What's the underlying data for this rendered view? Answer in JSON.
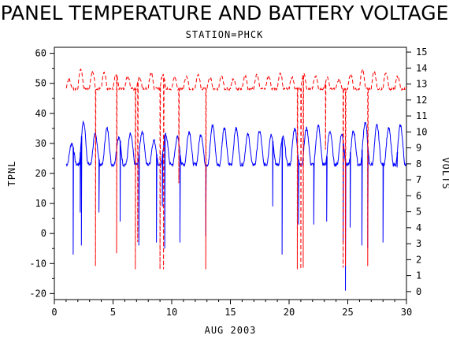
{
  "chart_data": {
    "type": "line",
    "title": "PANEL TEMPERATURE AND BATTERY VOLTAGE",
    "subtitle": "STATION=PHCK",
    "xlabel": "AUG 2003",
    "ylabel_left": "TPNL",
    "ylabel_right": "VOLTS",
    "xlim": [
      0,
      30
    ],
    "ylim_left": [
      -22,
      62
    ],
    "ylim_right": [
      -0.5,
      15.3
    ],
    "x_ticks": [
      0,
      5,
      10,
      15,
      20,
      25,
      30
    ],
    "y_ticks_left": [
      -20,
      -10,
      0,
      10,
      20,
      30,
      40,
      50,
      60
    ],
    "y_ticks_right": [
      0,
      1,
      2,
      3,
      4,
      5,
      6,
      7,
      8,
      9,
      10,
      11,
      12,
      13,
      14,
      15
    ],
    "grid": false,
    "series": [
      {
        "axis": "left",
        "color": "#0000ff",
        "style": "solid",
        "base": 23,
        "day_peaks": [
          30,
          37,
          33,
          35,
          32,
          33,
          34,
          31,
          33,
          32,
          34,
          33,
          36,
          35,
          35,
          33,
          34,
          33,
          32,
          35,
          35,
          36,
          34,
          33,
          34,
          37,
          36,
          35,
          36,
          36
        ],
        "drops": [
          [
            1.6,
            -7
          ],
          [
            2.2,
            7
          ],
          [
            2.3,
            -4
          ],
          [
            3.8,
            7
          ],
          [
            5.6,
            4
          ],
          [
            7.2,
            -4
          ],
          [
            8.7,
            -3
          ],
          [
            9.2,
            9
          ],
          [
            9.4,
            -5
          ],
          [
            10.7,
            -3
          ],
          [
            12.9,
            -1
          ],
          [
            18.6,
            9
          ],
          [
            19.4,
            -7
          ],
          [
            20.8,
            3
          ],
          [
            22.1,
            3
          ],
          [
            23.2,
            4
          ],
          [
            24.6,
            -3
          ],
          [
            24.8,
            -19
          ],
          [
            25.2,
            2
          ],
          [
            26.2,
            -4
          ],
          [
            26.7,
            -5
          ],
          [
            28.0,
            -3
          ],
          [
            29.2,
            22
          ]
        ],
        "n_points": 900,
        "x_start": 1.0,
        "x_end": 30.0
      },
      {
        "axis": "right",
        "color": "#ff0000",
        "style": "dashed",
        "low": 12.7,
        "day_peaks": [
          13.3,
          13.9,
          13.8,
          13.7,
          13.6,
          13.5,
          13.4,
          13.7,
          13.6,
          13.4,
          13.5,
          13.6,
          13.4,
          13.5,
          13.3,
          13.5,
          13.6,
          13.5,
          13.7,
          13.4,
          13.6,
          13.5,
          13.4,
          13.3,
          13.6,
          13.9,
          13.8,
          13.7,
          13.5,
          13.4
        ],
        "drops": [
          [
            3.5,
            1.6
          ],
          [
            5.3,
            2.4
          ],
          [
            6.9,
            1.4
          ],
          [
            7.1,
            3.1
          ],
          [
            9.0,
            1.4
          ],
          [
            9.3,
            1.4
          ],
          [
            10.6,
            6.8
          ],
          [
            12.9,
            1.4
          ],
          [
            20.7,
            1.4
          ],
          [
            21.0,
            1.4
          ],
          [
            21.2,
            1.5
          ],
          [
            23.1,
            8.9
          ],
          [
            24.6,
            1.5
          ],
          [
            24.8,
            1.6
          ],
          [
            26.7,
            1.6
          ]
        ],
        "n_points": 900,
        "x_start": 1.0,
        "x_end": 30.0
      }
    ]
  }
}
